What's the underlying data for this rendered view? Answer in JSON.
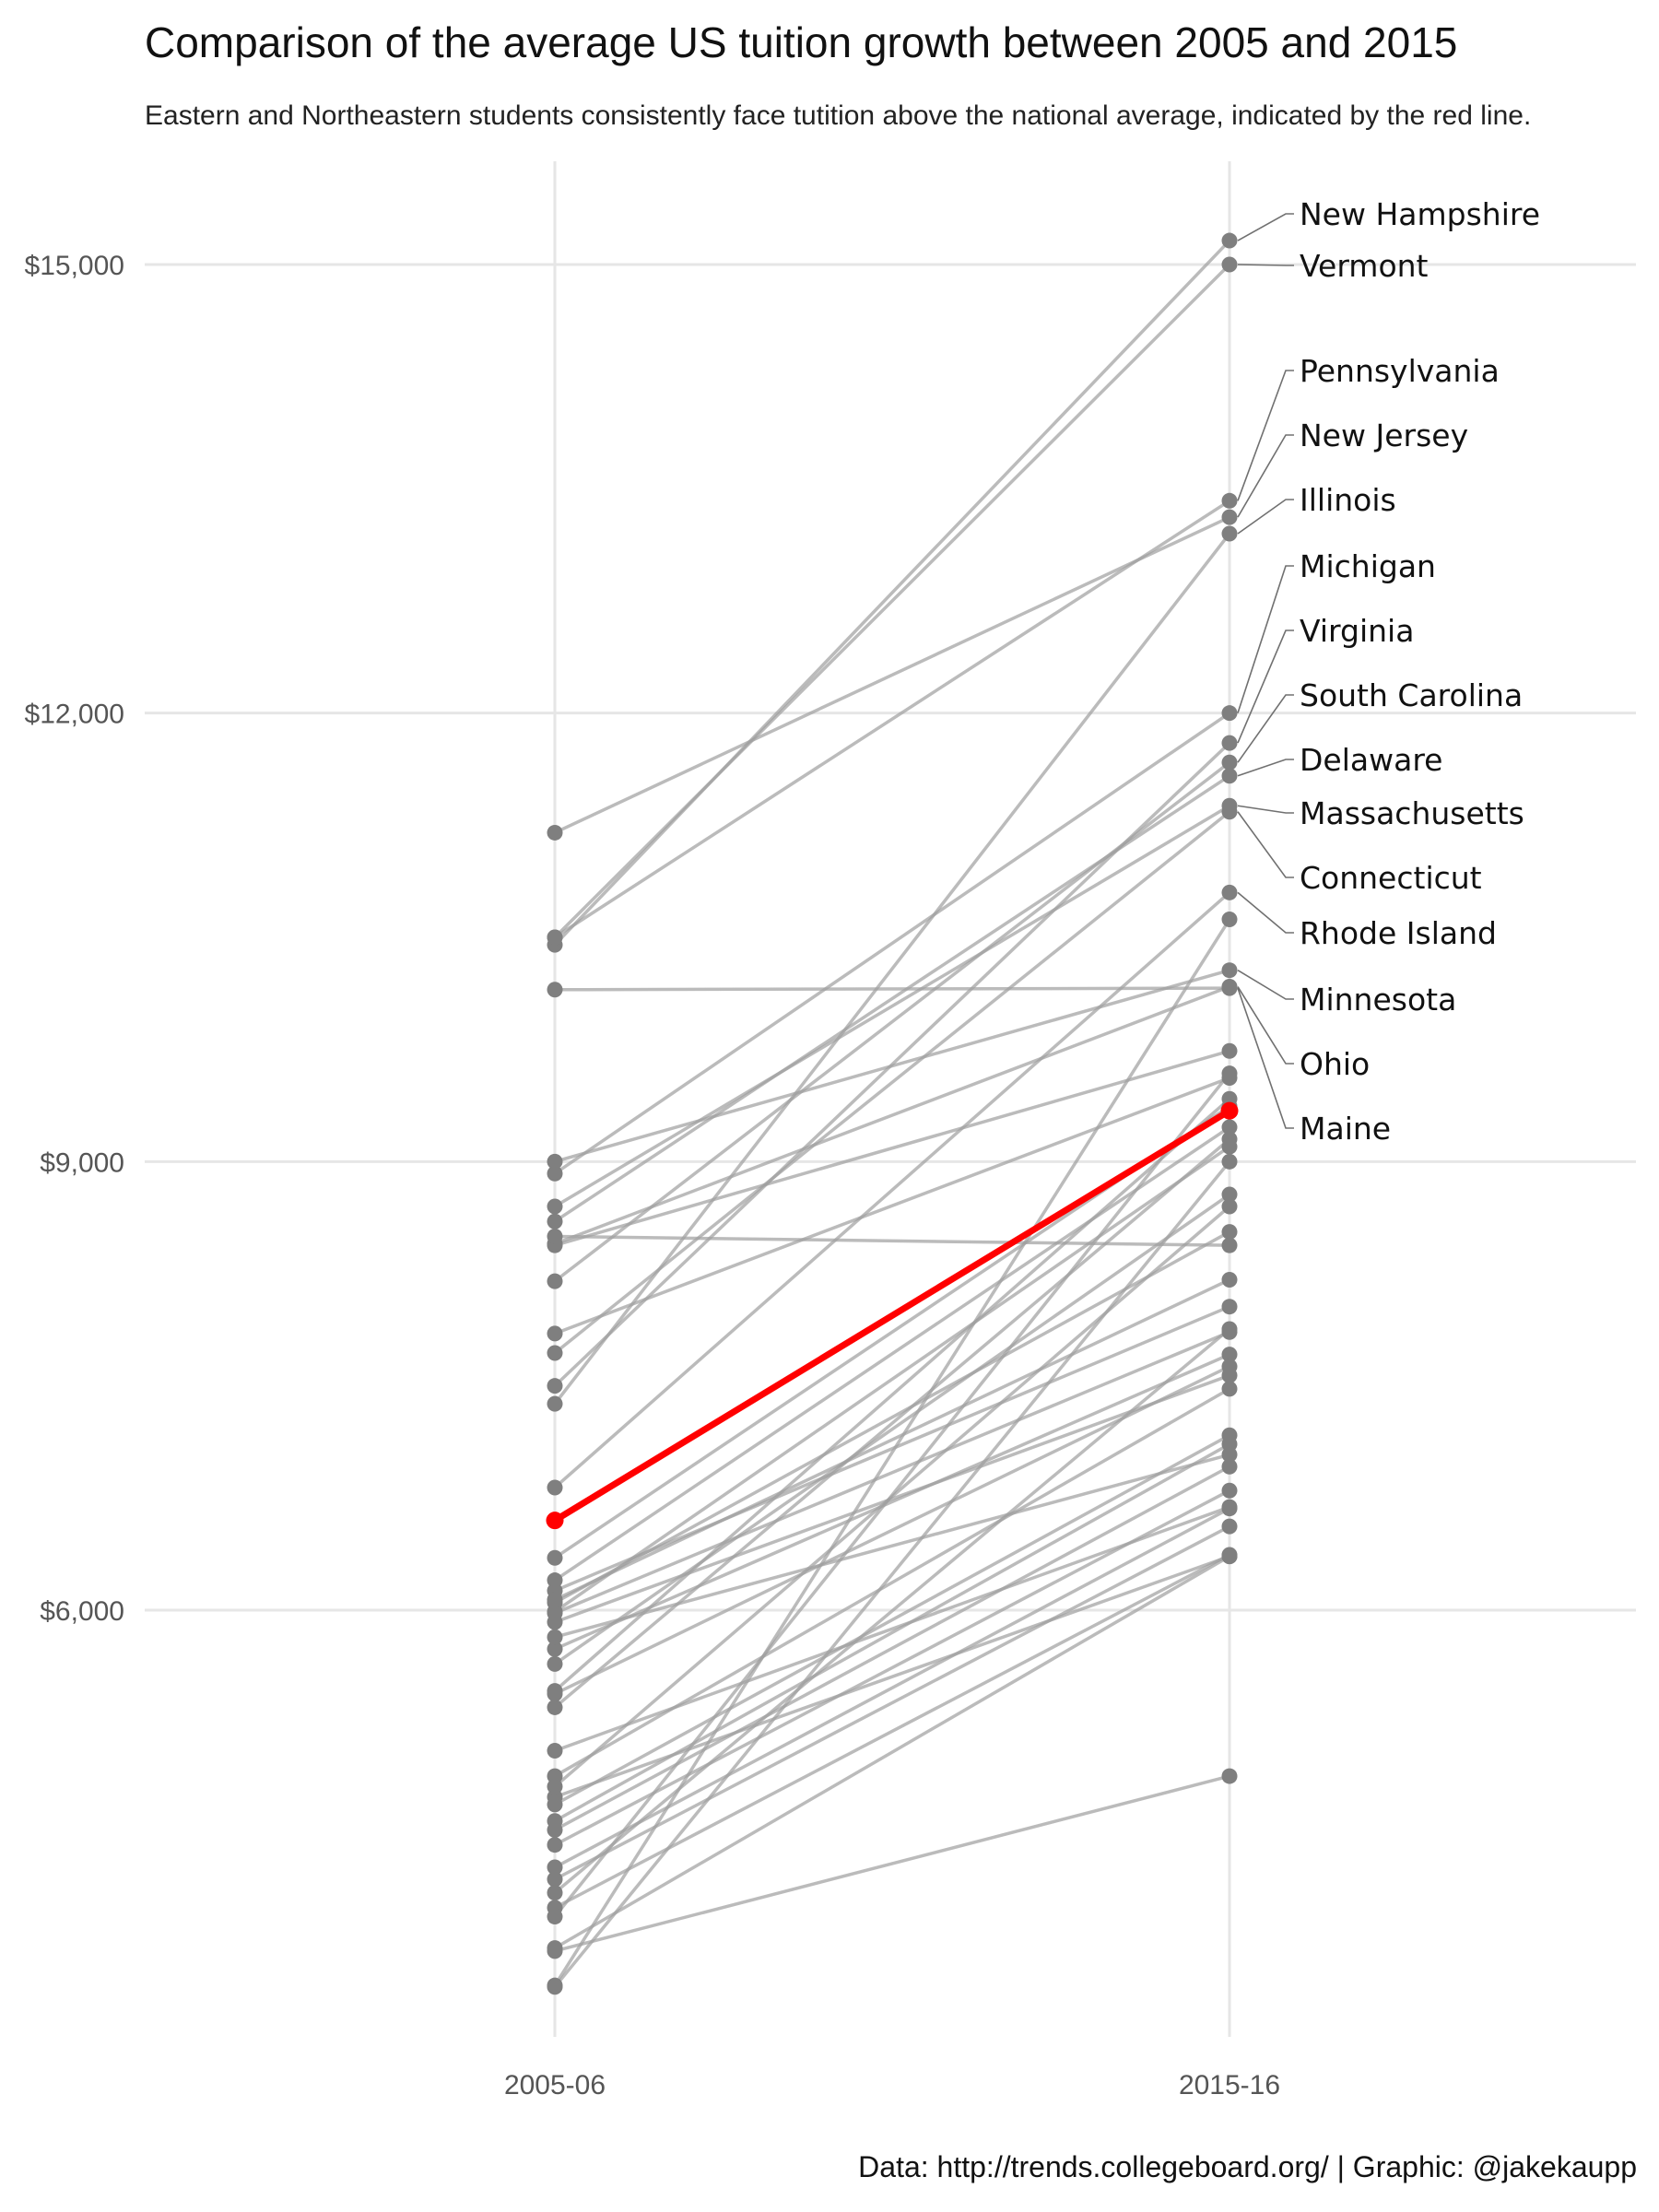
{
  "chart_data": {
    "type": "line",
    "title": "Comparison of the average US tuition growth between 2005 and 2015",
    "subtitle": "Eastern and Northeastern students consistently face tutition above the national average, indicated by the red line.",
    "caption": "Data: http://trends.collegeboard.org/ | Graphic: @jakekaupp",
    "x": [
      "2005-06",
      "2015-16"
    ],
    "ylim": [
      2800,
      15800
    ],
    "yticks": [
      {
        "value": 6000,
        "label": "$6,000"
      },
      {
        "value": 9000,
        "label": "$9,000"
      },
      {
        "value": 12000,
        "label": "$12,000"
      },
      {
        "value": 15000,
        "label": "$15,000"
      }
    ],
    "grid": true,
    "colors": {
      "states": "#9e9e9e",
      "points": "#7f7f7f",
      "average": "#ff0000",
      "grid": "#e6e6e6"
    },
    "average": {
      "values": [
        6600,
        9340
      ]
    },
    "labeled_series": [
      {
        "name": "New Hampshire",
        "values": [
          10450,
          15160
        ]
      },
      {
        "name": "Vermont",
        "values": [
          10500,
          15000
        ]
      },
      {
        "name": "Pennsylvania",
        "values": [
          10500,
          13420
        ]
      },
      {
        "name": "New Jersey",
        "values": [
          11200,
          13310
        ]
      },
      {
        "name": "Illinois",
        "values": [
          7380,
          13200
        ]
      },
      {
        "name": "Michigan",
        "values": [
          8920,
          12000
        ]
      },
      {
        "name": "Virginia",
        "values": [
          7500,
          11800
        ]
      },
      {
        "name": "South Carolina",
        "values": [
          8200,
          11670
        ]
      },
      {
        "name": "Delaware",
        "values": [
          8600,
          11580
        ]
      },
      {
        "name": "Massachusetts",
        "values": [
          8700,
          11380
        ]
      },
      {
        "name": "Connecticut",
        "values": [
          7720,
          11340
        ]
      },
      {
        "name": "Rhode Island",
        "values": [
          6820,
          10800
        ]
      },
      {
        "name": "Minnesota",
        "values": [
          9000,
          10280
        ]
      },
      {
        "name": "Ohio",
        "values": [
          8450,
          10170
        ]
      },
      {
        "name": "Maine",
        "values": [
          10150,
          10160
        ]
      }
    ],
    "other_series": [
      [
        8440,
        9740
      ],
      [
        7850,
        9560
      ],
      [
        6350,
        9370
      ],
      [
        6200,
        9230
      ],
      [
        5350,
        9150
      ],
      [
        5640,
        8780
      ],
      [
        6050,
        8530
      ],
      [
        8500,
        8440
      ],
      [
        6130,
        8030
      ],
      [
        5980,
        7860
      ],
      [
        5740,
        7710
      ],
      [
        5440,
        7630
      ],
      [
        4890,
        7480
      ],
      [
        4700,
        7170
      ],
      [
        4590,
        7110
      ],
      [
        4530,
        6960
      ],
      [
        4430,
        6800
      ],
      [
        4280,
        6680
      ],
      [
        4200,
        6560
      ],
      [
        4010,
        6370
      ],
      [
        3740,
        6360
      ],
      [
        4750,
        6360
      ],
      [
        3490,
        10620
      ],
      [
        3950,
        9590
      ],
      [
        5060,
        6690
      ],
      [
        5990,
        9100
      ],
      [
        5460,
        9420
      ],
      [
        4110,
        7880
      ],
      [
        5920,
        7570
      ],
      [
        5820,
        7040
      ],
      [
        3720,
        4890
      ],
      [
        6070,
        8210
      ],
      [
        3480,
        9000
      ],
      [
        4820,
        8700
      ]
    ]
  }
}
